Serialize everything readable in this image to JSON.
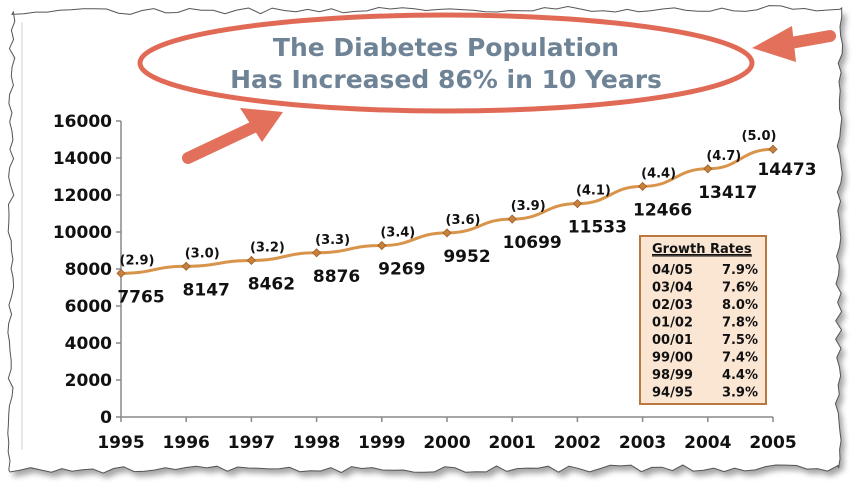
{
  "title": {
    "line1": "The Diabetes Population",
    "line2": "Has Increased 86% in 10 Years"
  },
  "colors": {
    "line": "#d9944b",
    "marker": "#c9803b",
    "ellipse": "#e06a55",
    "arrow": "#e2705a",
    "title": "#6f8396",
    "box_fill": "#fbe6d4",
    "box_border": "#b8783e"
  },
  "chart_data": {
    "type": "line",
    "x": [
      "1995",
      "1996",
      "1997",
      "1998",
      "1999",
      "2000",
      "2001",
      "2002",
      "2003",
      "2004",
      "2005"
    ],
    "series": [
      {
        "values": [
          7765,
          8147,
          8462,
          8876,
          9269,
          9952,
          10699,
          11533,
          12466,
          13417,
          14473
        ]
      }
    ],
    "data_labels": [
      "7765",
      "8147",
      "8462",
      "8876",
      "9269",
      "9952",
      "10699",
      "11533",
      "12466",
      "13417",
      "14473"
    ],
    "rate_labels": [
      "(2.9)",
      "(3.0)",
      "(3.2)",
      "(3.3)",
      "(3.4)",
      "(3.6)",
      "(3.9)",
      "(4.1)",
      "(4.4)",
      "(4.7)",
      "(5.0)"
    ],
    "yticks": [
      "0",
      "2000",
      "4000",
      "6000",
      "8000",
      "10000",
      "12000",
      "14000",
      "16000"
    ],
    "ylim": [
      0,
      16000
    ],
    "grid": false
  },
  "growth_rates": {
    "header": "Growth Rates",
    "rows": [
      {
        "period": "04/05",
        "rate": "7.9%"
      },
      {
        "period": "03/04",
        "rate": "7.6%"
      },
      {
        "period": "02/03",
        "rate": "8.0%"
      },
      {
        "period": "01/02",
        "rate": "7.8%"
      },
      {
        "period": "00/01",
        "rate": "7.5%"
      },
      {
        "period": "99/00",
        "rate": "7.4%"
      },
      {
        "period": "98/99",
        "rate": "4.4%"
      },
      {
        "period": "94/95",
        "rate": "3.9%"
      }
    ]
  }
}
